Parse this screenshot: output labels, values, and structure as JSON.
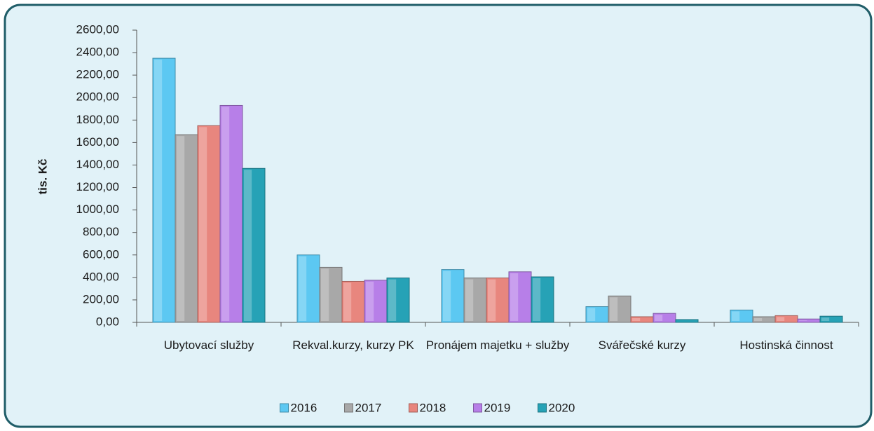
{
  "chart_data": {
    "type": "bar",
    "y_label": "tis. Kč",
    "categories": [
      "Ubytovací služby",
      "Rekval.kurzy, kurzy PK",
      "Pronájem majetku + služby",
      "Svářečské kurzy",
      "Hostinská činnost"
    ],
    "series": [
      {
        "name": "2016",
        "color": "#5cc8f2",
        "values": [
          2350,
          600,
          470,
          140,
          110
        ]
      },
      {
        "name": "2017",
        "color": "#a8a8a8",
        "values": [
          1670,
          490,
          395,
          235,
          50
        ]
      },
      {
        "name": "2018",
        "color": "#e8867e",
        "values": [
          1750,
          365,
          395,
          50,
          60
        ]
      },
      {
        "name": "2019",
        "color": "#b77fe8",
        "values": [
          1930,
          375,
          450,
          80,
          30
        ]
      },
      {
        "name": "2020",
        "color": "#26a2b6",
        "values": [
          1370,
          395,
          405,
          25,
          55
        ]
      }
    ],
    "ylim": [
      0,
      2600
    ],
    "yticks": [
      {
        "value": 0,
        "label": "0,00"
      },
      {
        "value": 200,
        "label": "200,00"
      },
      {
        "value": 400,
        "label": "400,00"
      },
      {
        "value": 600,
        "label": "600,00"
      },
      {
        "value": 800,
        "label": "800,00"
      },
      {
        "value": 1000,
        "label": "1000,00"
      },
      {
        "value": 1200,
        "label": "1200,00"
      },
      {
        "value": 1400,
        "label": "1400,00"
      },
      {
        "value": 1600,
        "label": "1600,00"
      },
      {
        "value": 1800,
        "label": "1800,00"
      },
      {
        "value": 2000,
        "label": "2000,00"
      },
      {
        "value": 2200,
        "label": "2200,00"
      },
      {
        "value": 2400,
        "label": "2400,00"
      },
      {
        "value": 2600,
        "label": "2600,00"
      }
    ],
    "grid": false,
    "legend": "bottom"
  }
}
